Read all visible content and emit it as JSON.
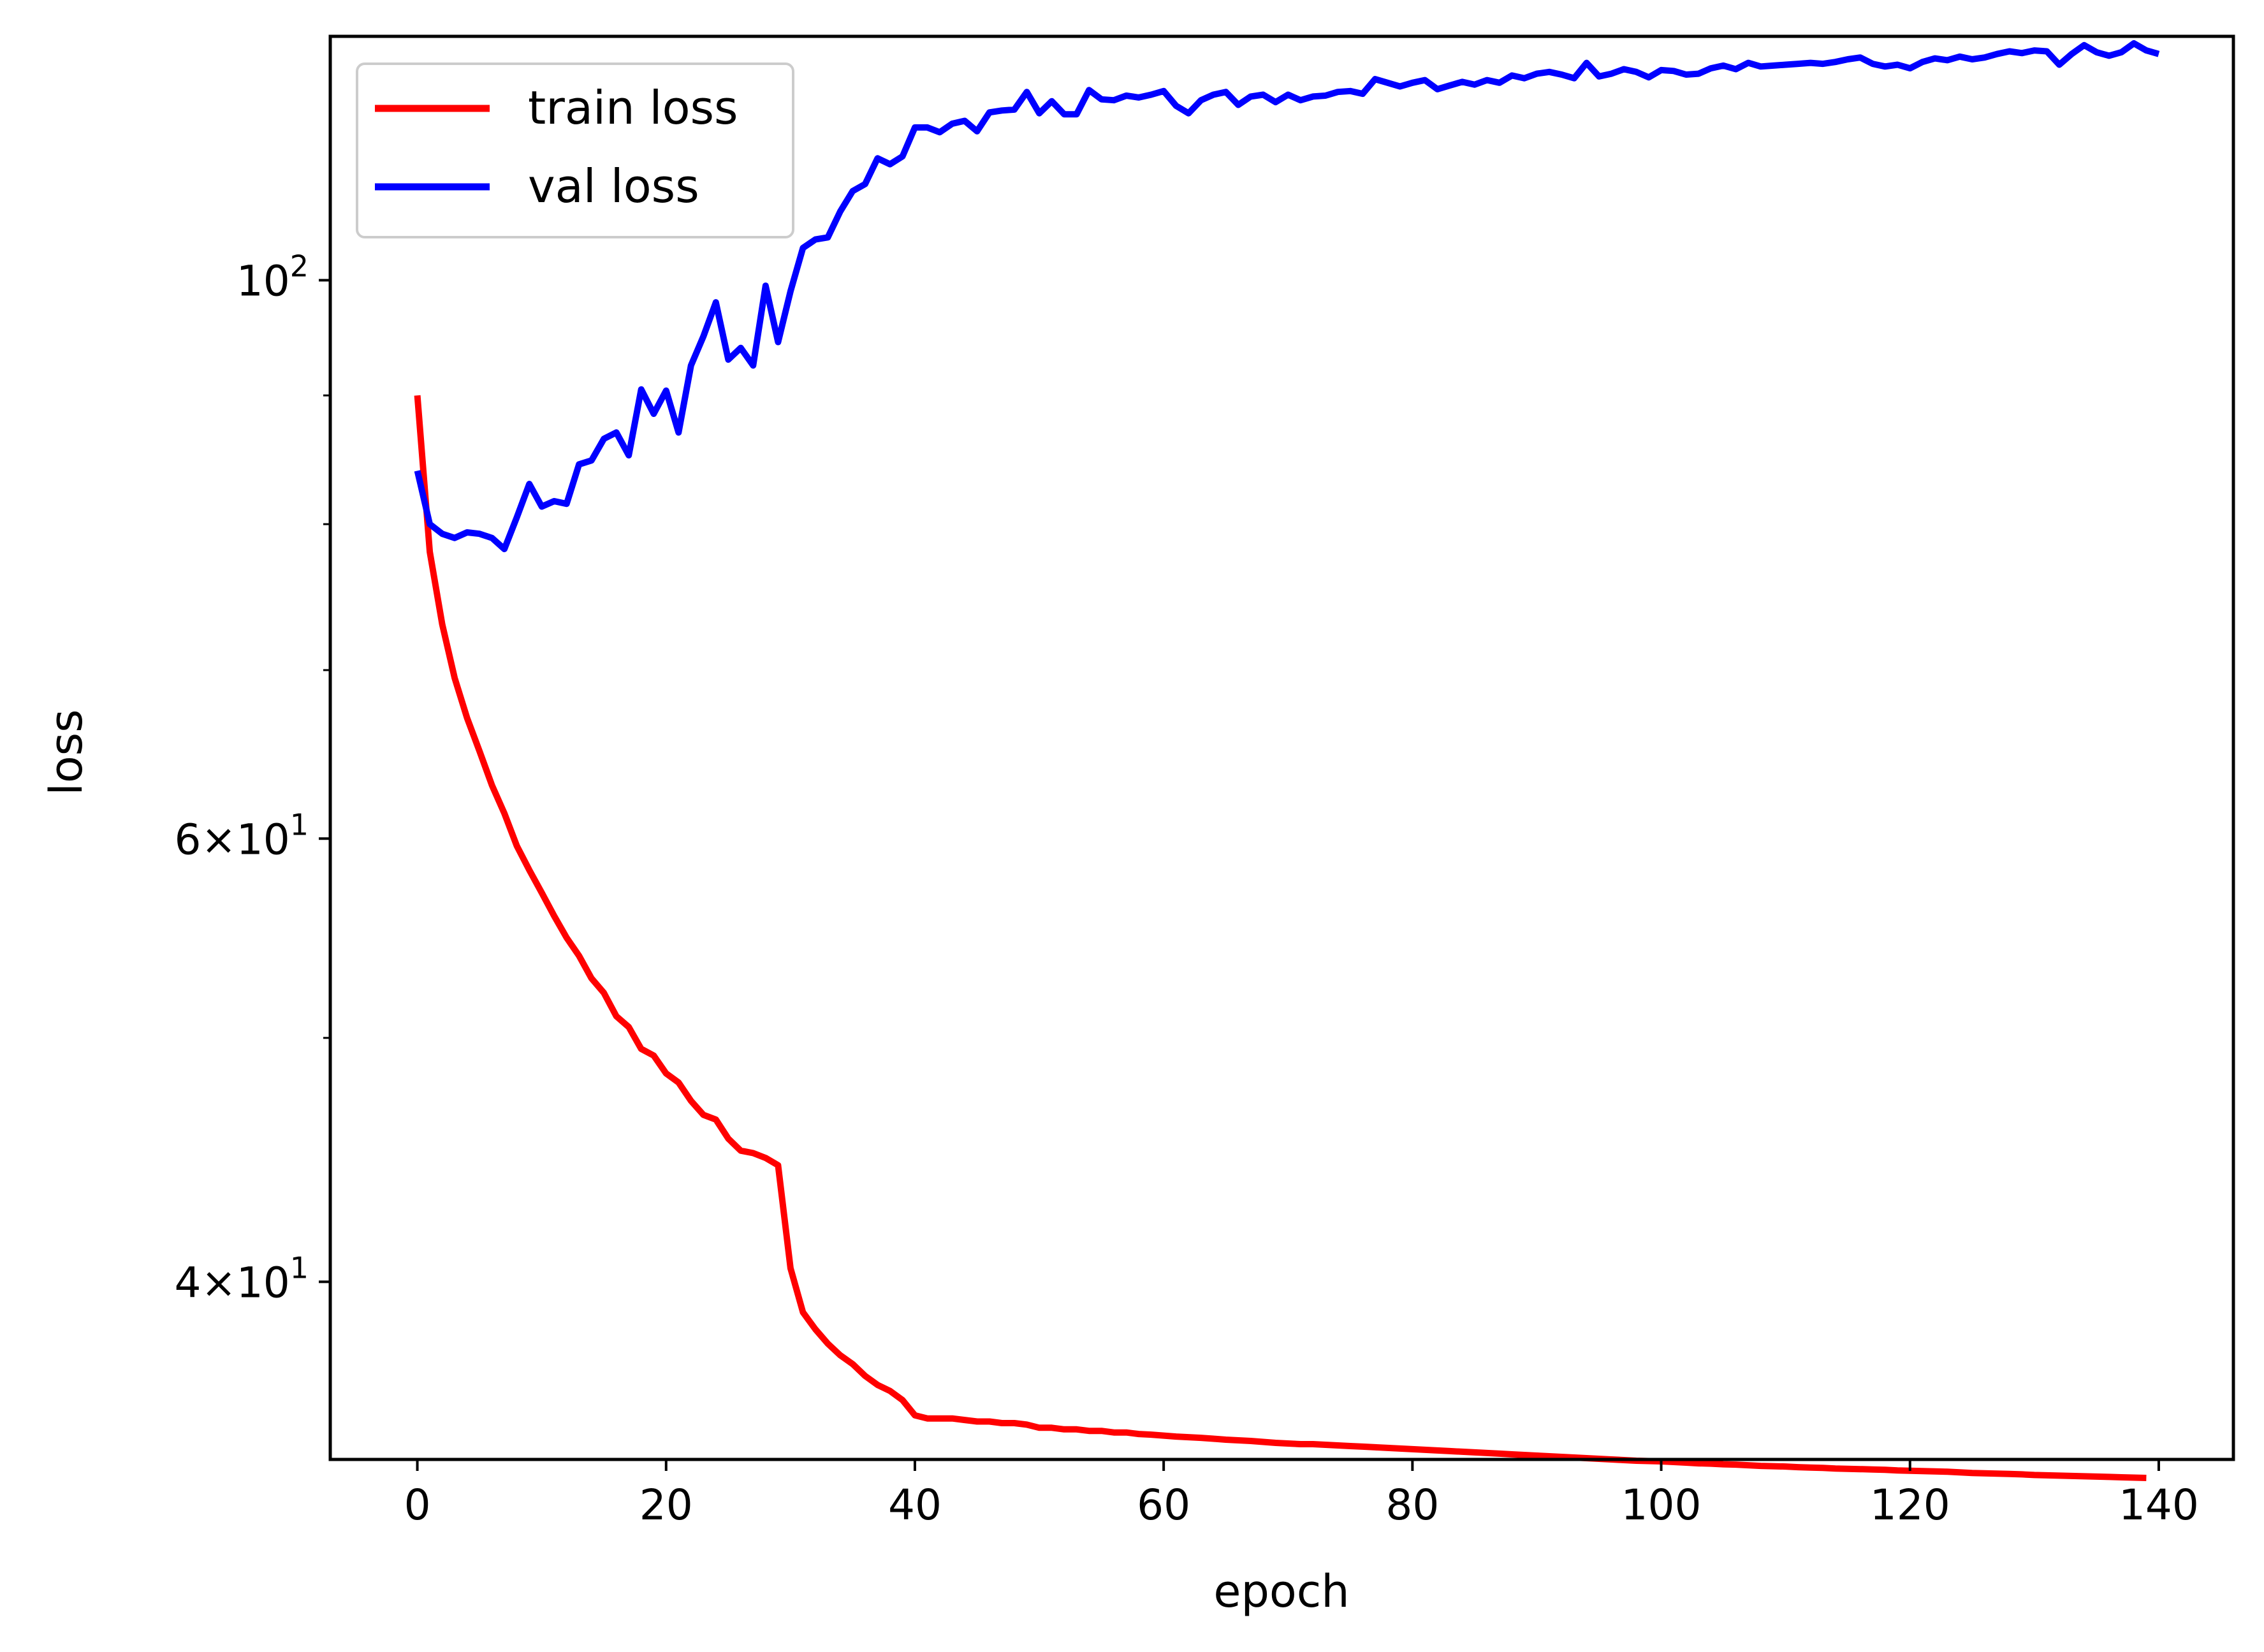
{
  "chart_data": {
    "type": "line",
    "title": "",
    "xlabel": "epoch",
    "ylabel": "loss",
    "yscale": "log",
    "xlim": [
      -7,
      146
    ],
    "ylim": [
      34.0,
      125.0
    ],
    "grid": false,
    "legend_position": "top-left",
    "x_ticks": [
      {
        "value": 0,
        "label": "0"
      },
      {
        "value": 20,
        "label": "20"
      },
      {
        "value": 40,
        "label": "40"
      },
      {
        "value": 60,
        "label": "60"
      },
      {
        "value": 80,
        "label": "80"
      },
      {
        "value": 100,
        "label": "100"
      },
      {
        "value": 120,
        "label": "120"
      },
      {
        "value": 140,
        "label": "140"
      }
    ],
    "y_major_ticks": [
      {
        "value": 100,
        "base": "10",
        "exp": "2"
      },
      {
        "value": 60,
        "base": "6×10",
        "exp": "1"
      },
      {
        "value": 40,
        "base": "4×10",
        "exp": "1"
      }
    ],
    "y_minor_ticks": [
      50,
      70,
      80,
      90
    ],
    "series": [
      {
        "name": "train loss",
        "color": "#ff0000",
        "values": [
          90.0,
          78.0,
          73.0,
          69.5,
          67.0,
          65.0,
          63.0,
          61.4,
          59.6,
          58.3,
          57.1,
          55.9,
          54.8,
          53.9,
          52.8,
          52.1,
          51.0,
          50.5,
          49.5,
          49.2,
          48.4,
          48.0,
          47.2,
          46.6,
          46.4,
          45.6,
          45.1,
          45.0,
          44.8,
          44.5,
          40.5,
          38.9,
          38.3,
          37.8,
          37.4,
          37.1,
          36.7,
          36.4,
          36.2,
          35.9,
          35.4,
          35.3,
          35.3,
          35.3,
          35.25,
          35.2,
          35.2,
          35.15,
          35.15,
          35.1,
          35.0,
          35.0,
          34.95,
          34.95,
          34.9,
          34.9,
          34.85,
          34.85,
          34.8,
          34.78,
          34.75,
          34.72,
          34.7,
          34.68,
          34.65,
          34.62,
          34.6,
          34.58,
          34.55,
          34.52,
          34.5,
          34.48,
          34.48,
          34.46,
          34.44,
          34.42,
          34.4,
          34.38,
          34.36,
          34.34,
          34.32,
          34.3,
          34.28,
          34.26,
          34.24,
          34.22,
          34.2,
          34.18,
          34.16,
          34.14,
          34.12,
          34.1,
          34.08,
          34.06,
          34.04,
          34.02,
          34.0,
          33.98,
          33.96,
          33.95,
          33.94,
          33.92,
          33.9,
          33.88,
          33.87,
          33.85,
          33.84,
          33.82,
          33.8,
          33.79,
          33.78,
          33.76,
          33.75,
          33.74,
          33.72,
          33.71,
          33.7,
          33.69,
          33.68,
          33.66,
          33.65,
          33.64,
          33.63,
          33.62,
          33.6,
          33.58,
          33.57,
          33.56,
          33.55,
          33.54,
          33.52,
          33.51,
          33.5,
          33.49,
          33.48,
          33.47,
          33.46,
          33.45,
          33.44,
          33.43
        ]
      },
      {
        "name": "val loss",
        "color": "#0000ff",
        "values": [
          84.0,
          80.0,
          79.3,
          79.0,
          79.4,
          79.3,
          79.0,
          78.2,
          80.5,
          83.0,
          81.3,
          81.7,
          81.5,
          84.5,
          84.8,
          86.5,
          87.0,
          85.2,
          90.5,
          88.5,
          90.4,
          87.0,
          92.5,
          95.0,
          98.0,
          93.0,
          94.0,
          92.5,
          99.5,
          94.5,
          99.0,
          103.0,
          103.8,
          104.0,
          106.5,
          108.5,
          109.2,
          111.8,
          111.2,
          112.0,
          115.0,
          115.0,
          114.5,
          115.4,
          115.7,
          114.6,
          116.6,
          116.8,
          116.9,
          118.8,
          116.5,
          117.8,
          116.4,
          116.4,
          119.0,
          118.0,
          117.9,
          118.4,
          118.2,
          118.5,
          118.9,
          117.3,
          116.5,
          117.9,
          118.5,
          118.8,
          117.4,
          118.3,
          118.5,
          117.7,
          118.5,
          117.9,
          118.3,
          118.4,
          118.8,
          118.9,
          118.6,
          120.2,
          119.8,
          119.4,
          119.8,
          120.1,
          119.1,
          119.5,
          119.9,
          119.6,
          120.1,
          119.8,
          120.6,
          120.3,
          120.8,
          121.0,
          120.7,
          120.3,
          122.0,
          120.5,
          120.8,
          121.3,
          121.0,
          120.4,
          121.2,
          121.1,
          120.7,
          120.8,
          121.4,
          121.7,
          121.3,
          122.0,
          121.6,
          121.7,
          121.8,
          121.9,
          122.0,
          121.9,
          122.1,
          122.4,
          122.6,
          121.9,
          121.6,
          121.8,
          121.4,
          122.1,
          122.5,
          122.3,
          122.7,
          122.4,
          122.6,
          123.0,
          123.3,
          123.1,
          123.4,
          123.3,
          121.8,
          123.0,
          124.0,
          123.2,
          122.8,
          123.2,
          124.2,
          123.4,
          123.0
        ]
      }
    ]
  }
}
